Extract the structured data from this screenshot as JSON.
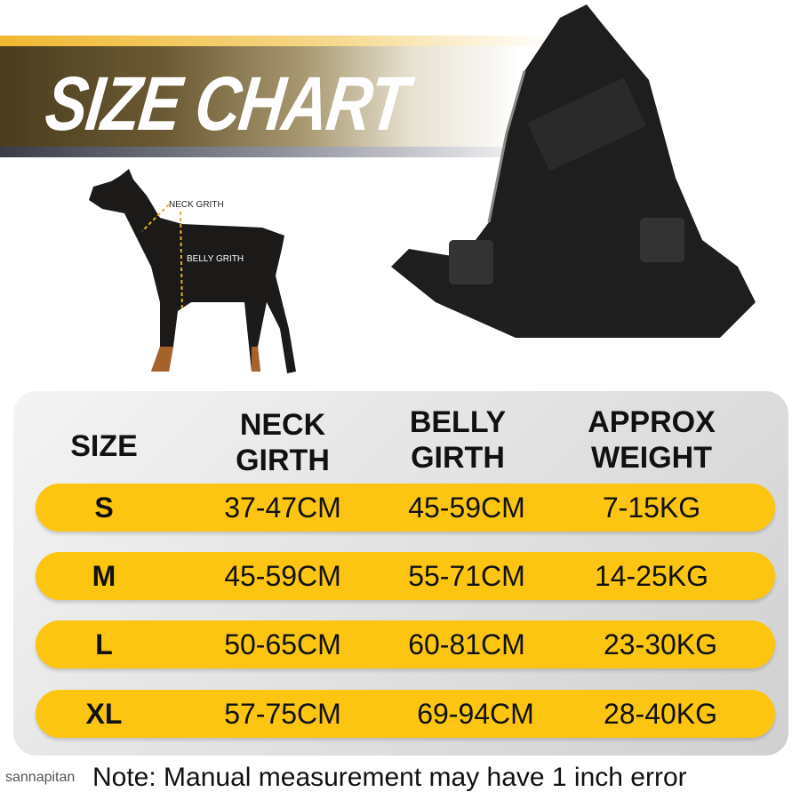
{
  "title": "SIZE CHART",
  "dog_labels": {
    "neck": "NECK GRITH",
    "belly": "BELLY GRITH"
  },
  "headers": {
    "size": "SIZE",
    "neck": [
      "NECK",
      "GIRTH"
    ],
    "belly": [
      "BELLY",
      "GIRTH"
    ],
    "weight": [
      "APPROX",
      "WEIGHT"
    ]
  },
  "rows": [
    {
      "size": "S",
      "neck": "37-47CM",
      "belly": "45-59CM",
      "weight": "7-15KG"
    },
    {
      "size": "M",
      "neck": "45-59CM",
      "belly": "55-71CM",
      "weight": "14-25KG"
    },
    {
      "size": "L",
      "neck": "50-65CM",
      "belly": "60-81CM",
      "weight": "23-30KG"
    },
    {
      "size": "XL",
      "neck": "57-75CM",
      "belly": "69-94CM",
      "weight": "28-40KG"
    }
  ],
  "note": "Note: Manual measurement may have 1 inch error",
  "watermark": "sannapitan",
  "colors": {
    "row": "#fbc512",
    "banner_dark": "#4a3c1e",
    "gold": "#f0b830"
  }
}
